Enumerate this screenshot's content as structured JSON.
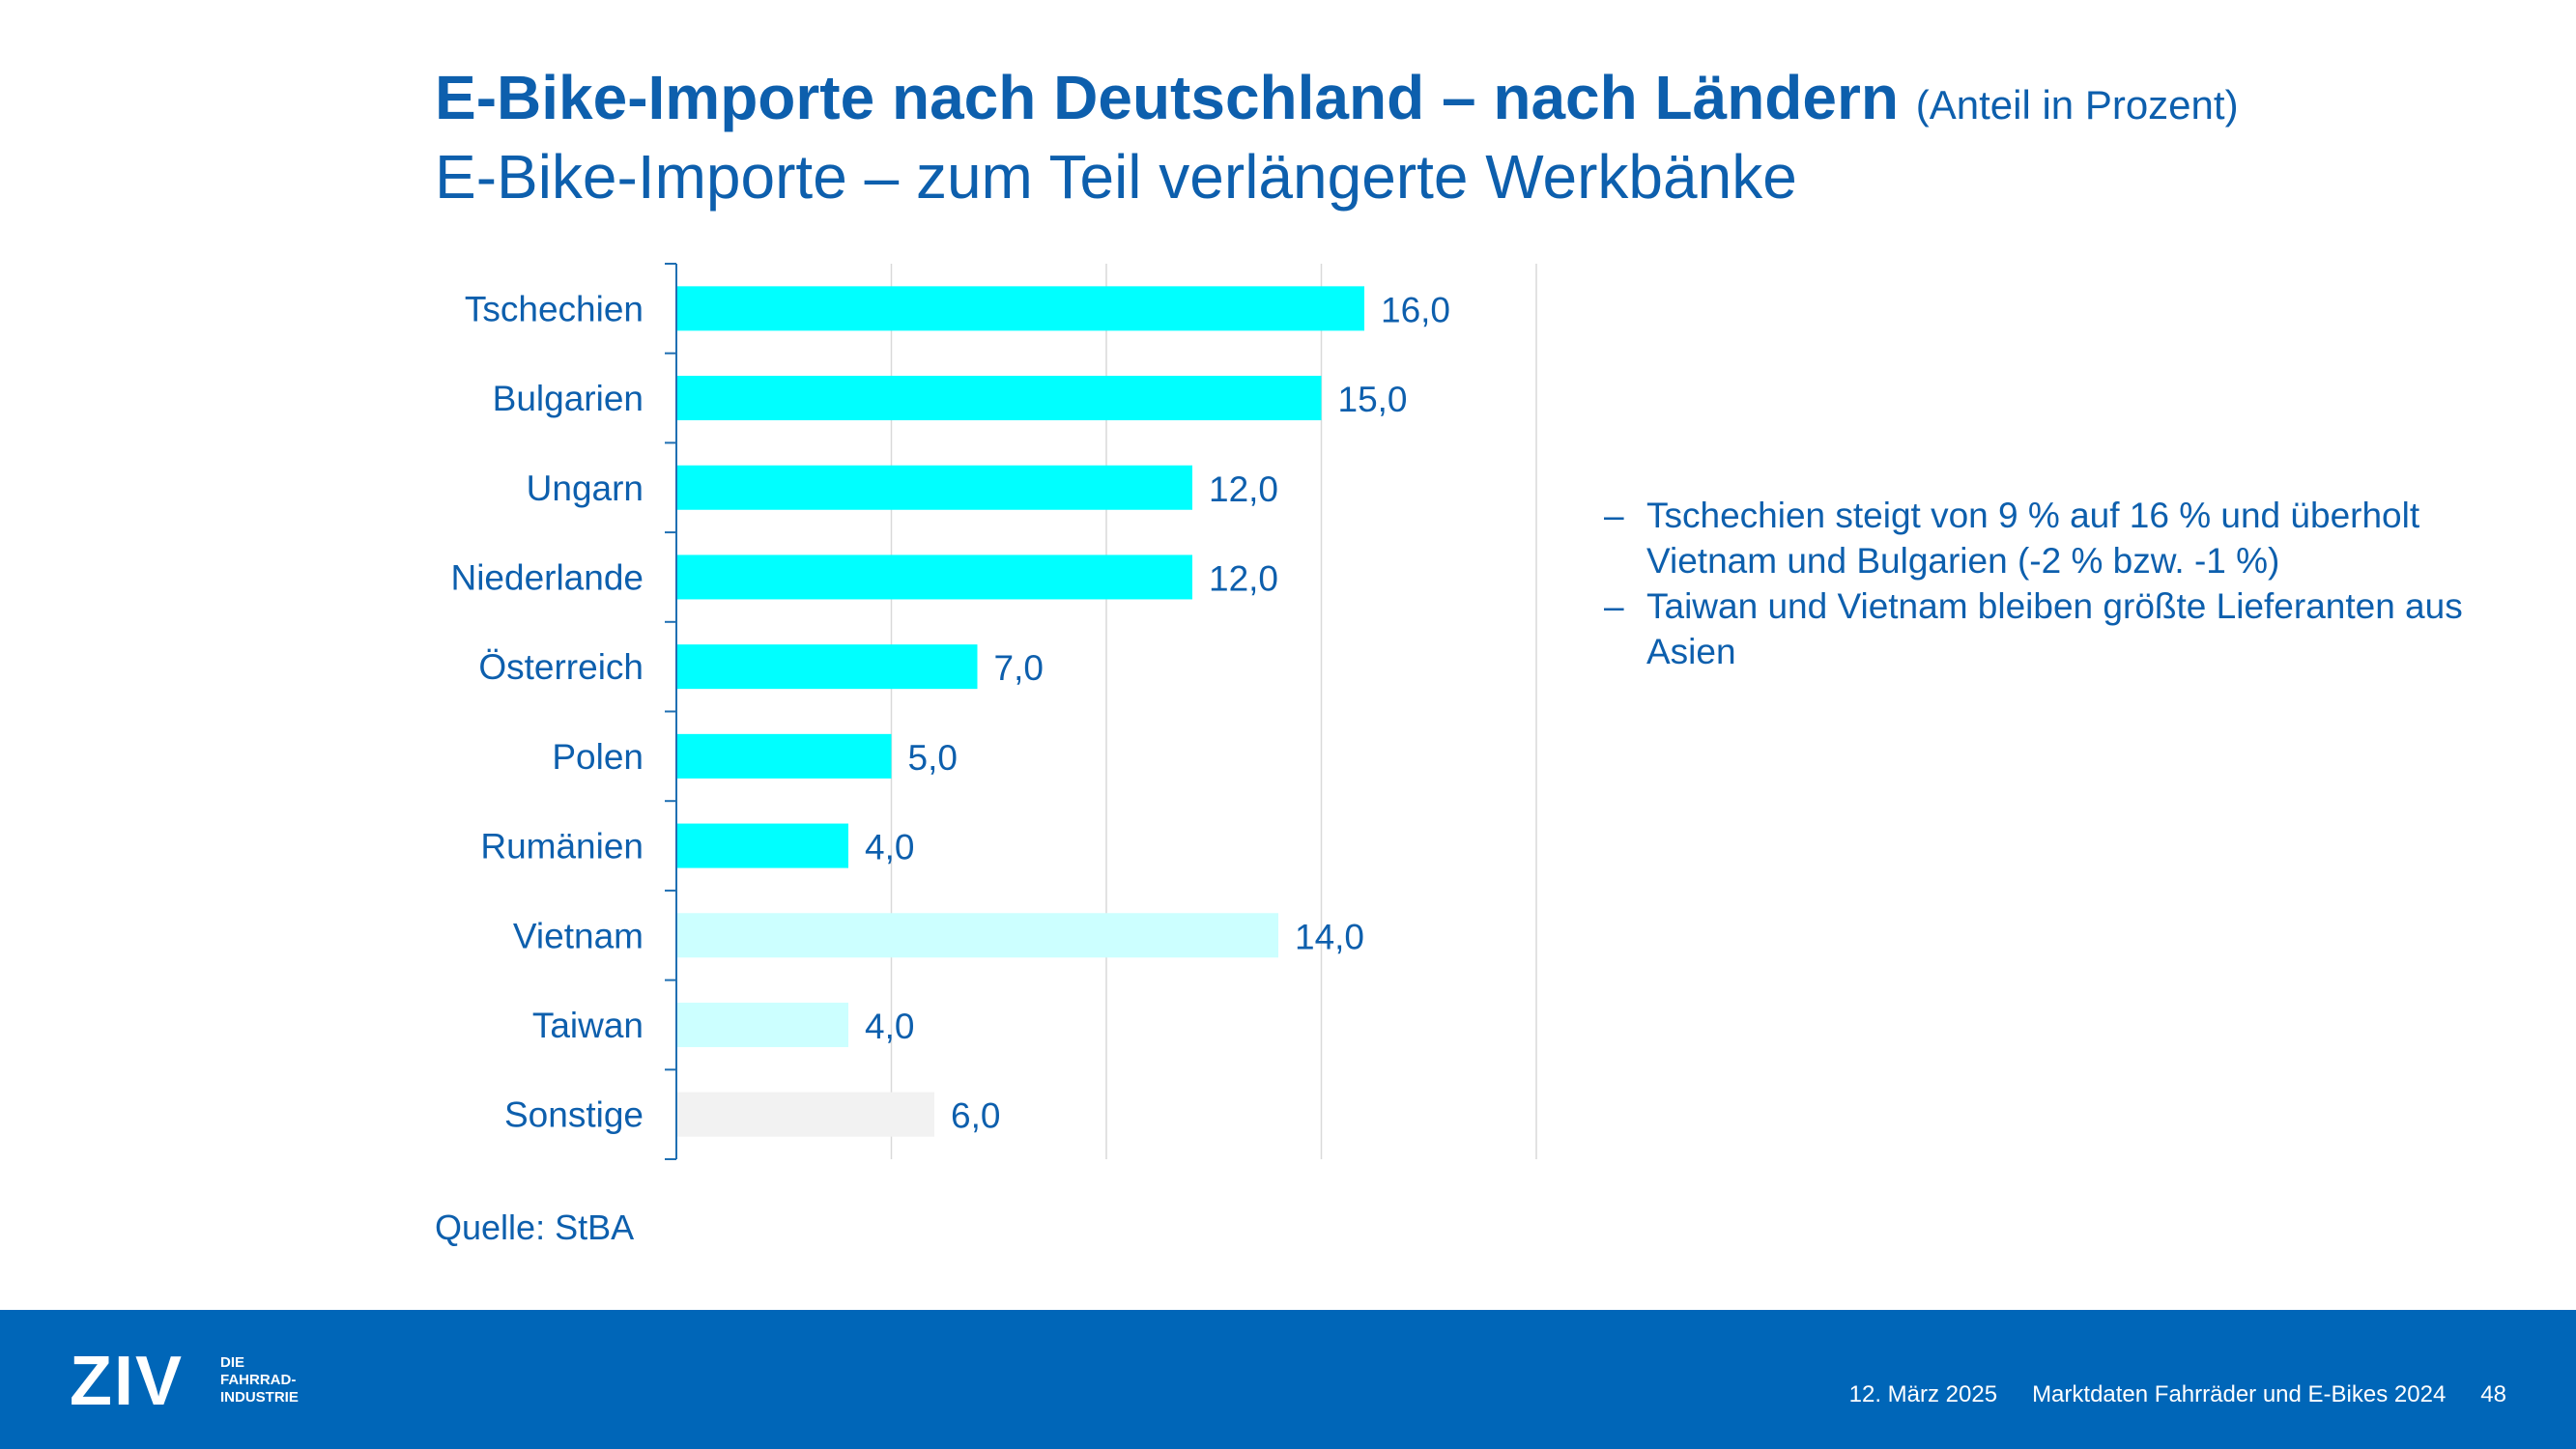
{
  "header": {
    "title": "E-Bike-Importe nach Deutschland – nach Ländern",
    "title_note": "(Anteil in Prozent)",
    "subtitle": "E-Bike-Importe – zum Teil verlängerte Werkbänke"
  },
  "chart_data": {
    "type": "bar",
    "orientation": "horizontal",
    "title": "",
    "xlabel": "",
    "ylabel": "",
    "xlim": [
      0,
      20
    ],
    "grid": true,
    "categories": [
      "Tschechien",
      "Bulgarien",
      "Ungarn",
      "Niederlande",
      "Österreich",
      "Polen",
      "Rumänien",
      "Vietnam",
      "Taiwan",
      "Sonstige"
    ],
    "values": [
      16.0,
      15.0,
      12.0,
      12.0,
      7.0,
      5.0,
      4.0,
      14.0,
      4.0,
      6.0
    ],
    "value_labels": [
      "16,0",
      "15,0",
      "12,0",
      "12,0",
      "7,0",
      "5,0",
      "4,0",
      "14,0",
      "4,0",
      "6,0"
    ],
    "bar_colors": [
      "#00ffff",
      "#00ffff",
      "#00ffff",
      "#00ffff",
      "#00ffff",
      "#00ffff",
      "#00ffff",
      "#ccffff",
      "#ccffff",
      "#f2f2f2"
    ]
  },
  "bullets": [
    "Tschechien steigt von 9 % auf 16 % und überholt Vietnam und Bulgarien (-2 % bzw. -1 %)",
    "Taiwan und Vietnam bleiben größte Lieferanten aus Asien"
  ],
  "bullet_marker": "–",
  "source": "Quelle: StBA",
  "footer": {
    "logo_letters": "ZIV",
    "logo_tagline": [
      "DIE",
      "FAHRRAD-",
      "INDUSTRIE"
    ],
    "date": "12. März 2025",
    "doc_title": "Marktdaten Fahrräder und E-Bikes 2024",
    "page_number": "48"
  },
  "colors": {
    "text_blue": "#0d5fad",
    "footer_blue": "#0066b8",
    "gridline": "#d9d9d9"
  }
}
